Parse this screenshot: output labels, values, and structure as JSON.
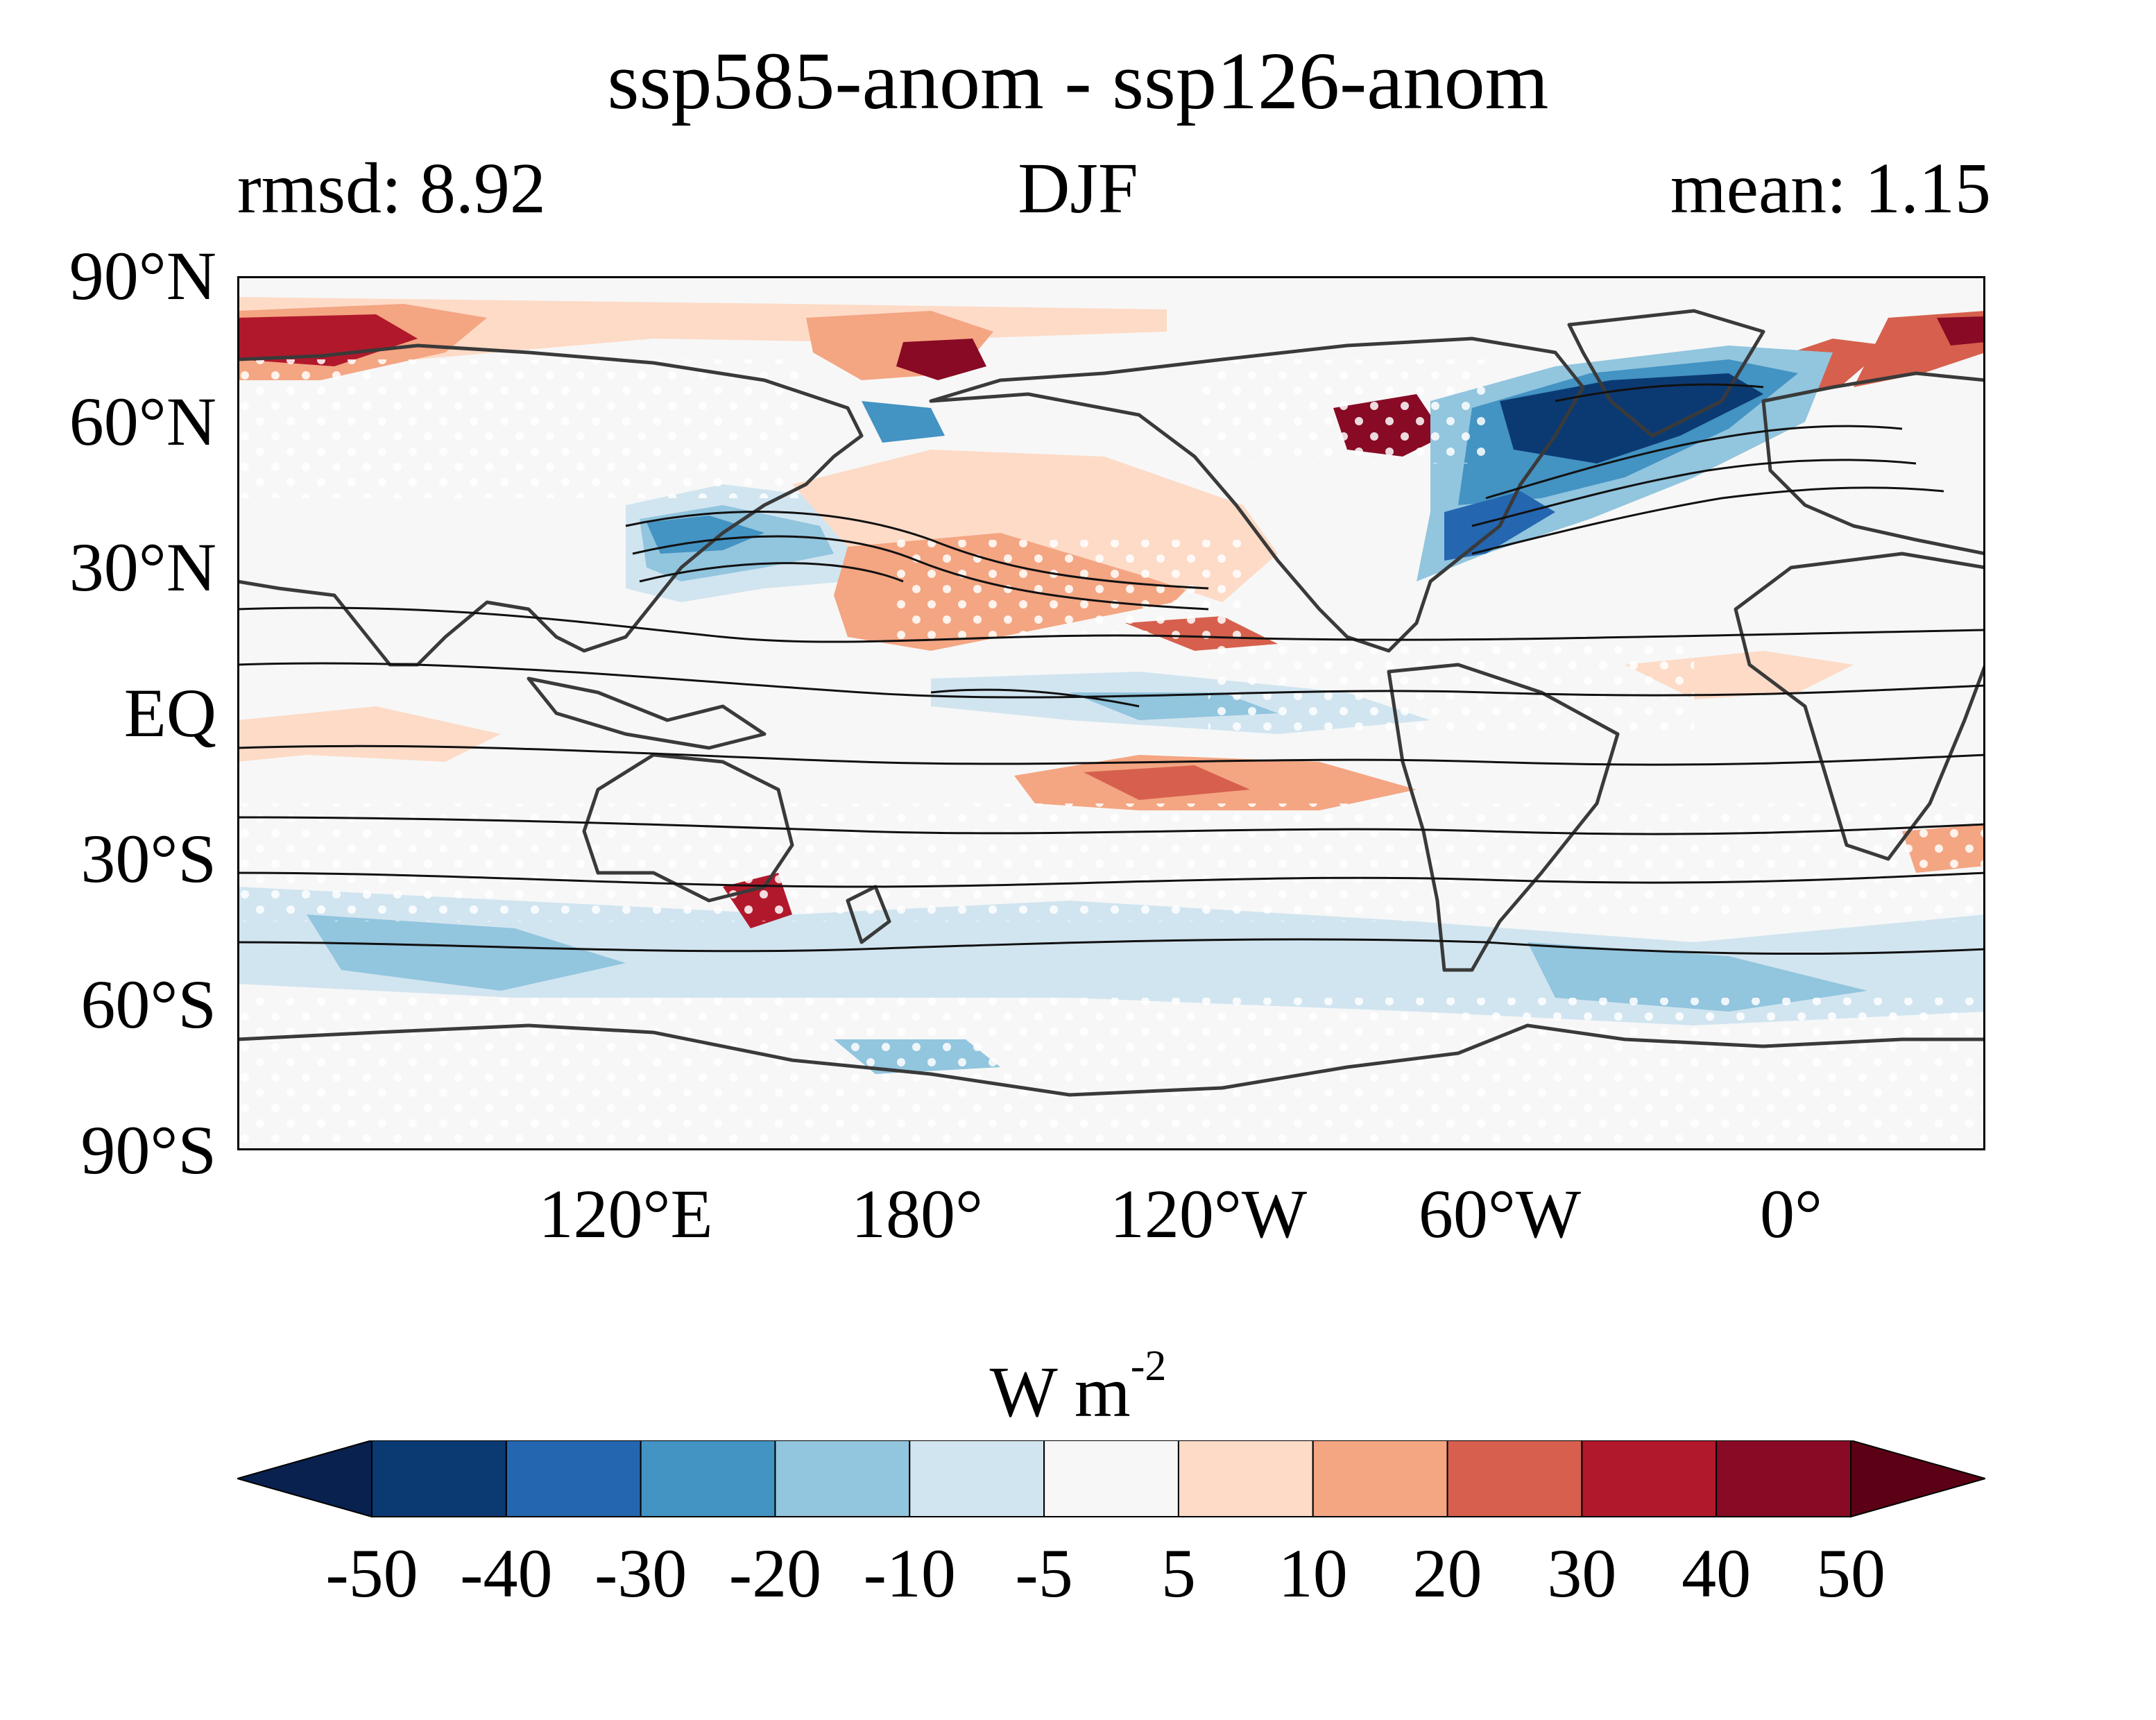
{
  "header": {
    "title": "ssp585-anom - ssp126-anom",
    "rmsd": "rmsd: 8.92",
    "season": "DJF",
    "mean": "mean: 1.15"
  },
  "map": {
    "lat_labels": [
      "90°N",
      "60°N",
      "30°N",
      "EQ",
      "30°S",
      "60°S",
      "90°S"
    ],
    "lat_values": [
      90,
      60,
      30,
      0,
      -30,
      -60,
      -90
    ],
    "lon_labels": [
      "120°E",
      "180°",
      "120°W",
      "60°W",
      "0°"
    ],
    "lon_values": [
      120,
      180,
      240,
      300,
      360
    ],
    "lon_range": [
      40,
      400
    ],
    "lat_range": [
      -90,
      90
    ],
    "background_color": "#f7f7f7",
    "coastline_color": "#3a3a3a",
    "contour_color": "#111111",
    "stippling": "white dots mark non-significant areas"
  },
  "colorbar": {
    "unit_main": "W m",
    "unit_exp": "-2",
    "tick_labels": [
      "-50",
      "-40",
      "-30",
      "-20",
      "-10",
      "-5",
      "5",
      "10",
      "20",
      "30",
      "40",
      "50"
    ],
    "colors": [
      "#08214f",
      "#0b3a73",
      "#2466b0",
      "#4393c3",
      "#92c5de",
      "#d1e5f0",
      "#f7f7f7",
      "#fddbc7",
      "#f4a582",
      "#d6604d",
      "#b2182b",
      "#880a24",
      "#5c0016"
    ],
    "extend": "both"
  }
}
